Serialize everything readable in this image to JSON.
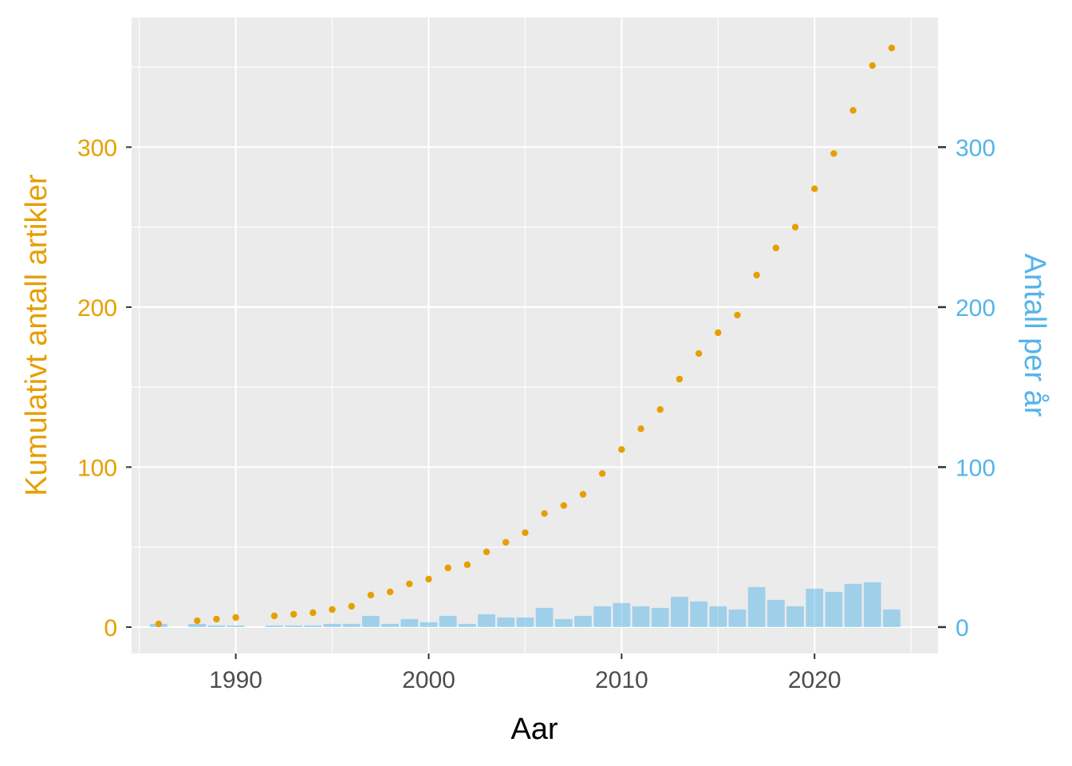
{
  "chart_data": {
    "type": "bar+scatter",
    "xlabel": "Aar",
    "ylabel_left": "Kumulativt antall artikler",
    "ylabel_right": "Antall per år",
    "xlim": [
      1984.6,
      2026.4
    ],
    "ylim": [
      -16.5,
      381
    ],
    "x_ticks": [
      1990,
      2000,
      2010,
      2020
    ],
    "y_ticks_left": [
      0,
      100,
      200,
      300
    ],
    "y_ticks_right": [
      0,
      100,
      200,
      300
    ],
    "colors": {
      "cumulative": "#E69F00",
      "per_year": "#56B4E9",
      "panel": "#EBEBEB",
      "grid": "#FFFFFF"
    },
    "series": [
      {
        "name": "Kumulativt antall artikler",
        "mark": "point",
        "x": [
          1986,
          1988,
          1989,
          1990,
          1992,
          1993,
          1994,
          1995,
          1996,
          1997,
          1998,
          1999,
          2000,
          2001,
          2002,
          2003,
          2004,
          2005,
          2006,
          2007,
          2008,
          2009,
          2010,
          2011,
          2012,
          2013,
          2014,
          2015,
          2016,
          2017,
          2018,
          2019,
          2020,
          2021,
          2022,
          2023,
          2024
        ],
        "y": [
          2,
          4,
          5,
          6,
          7,
          8,
          9,
          11,
          13,
          20,
          22,
          27,
          30,
          37,
          39,
          47,
          53,
          59,
          71,
          76,
          83,
          96,
          111,
          124,
          136,
          155,
          171,
          184,
          195,
          220,
          237,
          250,
          274,
          296,
          323,
          351,
          362
        ]
      },
      {
        "name": "Antall per år",
        "mark": "bar",
        "x": [
          1986,
          1988,
          1989,
          1990,
          1992,
          1993,
          1994,
          1995,
          1996,
          1997,
          1998,
          1999,
          2000,
          2001,
          2002,
          2003,
          2004,
          2005,
          2006,
          2007,
          2008,
          2009,
          2010,
          2011,
          2012,
          2013,
          2014,
          2015,
          2016,
          2017,
          2018,
          2019,
          2020,
          2021,
          2022,
          2023,
          2024
        ],
        "y": [
          2,
          2,
          1,
          1,
          1,
          1,
          1,
          2,
          2,
          7,
          2,
          5,
          3,
          7,
          2,
          8,
          6,
          6,
          12,
          5,
          7,
          13,
          15,
          13,
          12,
          19,
          16,
          13,
          11,
          25,
          17,
          13,
          24,
          22,
          27,
          28,
          11
        ]
      }
    ]
  }
}
